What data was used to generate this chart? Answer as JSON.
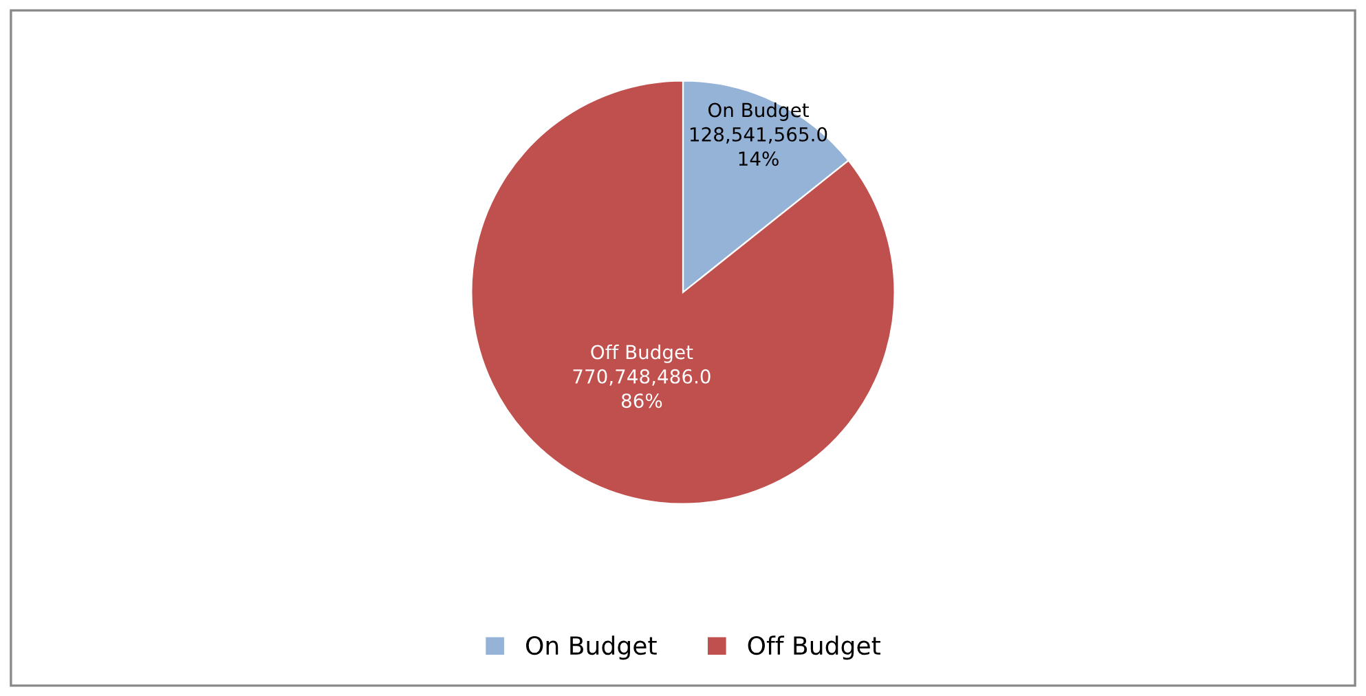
{
  "chart_data": {
    "type": "pie",
    "categories": [
      "On Budget",
      "Off Budget"
    ],
    "values": [
      128541565.0,
      770748486.0
    ],
    "value_labels": [
      "128,541,565.0\n14%",
      "770,748,486.0\n86%"
    ],
    "colors": [
      "#95b3d7",
      "#c0504d"
    ],
    "legend": "bottom"
  }
}
